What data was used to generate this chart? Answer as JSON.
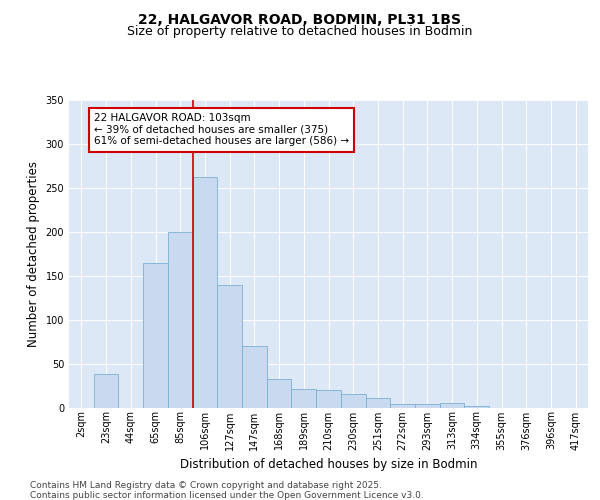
{
  "title1": "22, HALGAVOR ROAD, BODMIN, PL31 1BS",
  "title2": "Size of property relative to detached houses in Bodmin",
  "xlabel": "Distribution of detached houses by size in Bodmin",
  "ylabel": "Number of detached properties",
  "categories": [
    "2sqm",
    "23sqm",
    "44sqm",
    "65sqm",
    "85sqm",
    "106sqm",
    "127sqm",
    "147sqm",
    "168sqm",
    "189sqm",
    "210sqm",
    "230sqm",
    "251sqm",
    "272sqm",
    "293sqm",
    "313sqm",
    "334sqm",
    "355sqm",
    "376sqm",
    "396sqm",
    "417sqm"
  ],
  "values": [
    0,
    38,
    0,
    165,
    200,
    262,
    140,
    70,
    32,
    21,
    20,
    15,
    11,
    4,
    4,
    5,
    2,
    0,
    0,
    0,
    0
  ],
  "bar_color": "#c9d9ef",
  "bar_edge_color": "#7bafd4",
  "vline_index": 5,
  "vline_color": "#cc0000",
  "annotation_title": "22 HALGAVOR ROAD: 103sqm",
  "annotation_line1": "← 39% of detached houses are smaller (375)",
  "annotation_line2": "61% of semi-detached houses are larger (586) →",
  "annotation_box_facecolor": "white",
  "annotation_box_edgecolor": "#cc0000",
  "ylim": [
    0,
    350
  ],
  "yticks": [
    0,
    50,
    100,
    150,
    200,
    250,
    300,
    350
  ],
  "plot_bg_color": "#dce8f5",
  "fig_bg_color": "#ffffff",
  "grid_color": "#ffffff",
  "title1_fontsize": 10,
  "title2_fontsize": 9,
  "axis_label_fontsize": 8.5,
  "tick_fontsize": 7,
  "annot_fontsize": 7.5,
  "footer_fontsize": 6.5,
  "footer1": "Contains HM Land Registry data © Crown copyright and database right 2025.",
  "footer2": "Contains public sector information licensed under the Open Government Licence v3.0."
}
